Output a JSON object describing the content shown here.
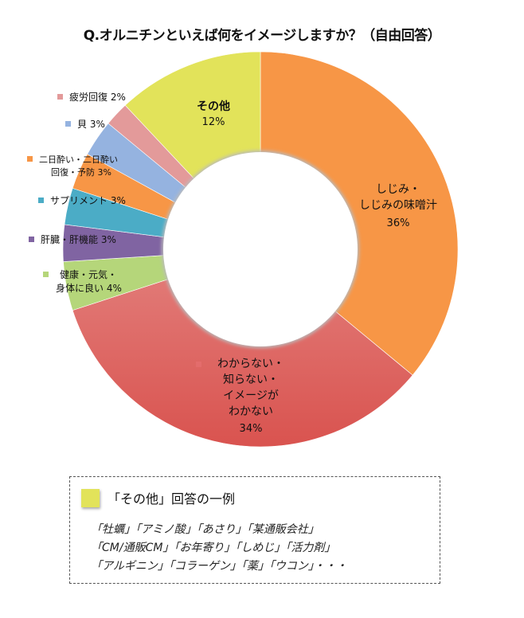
{
  "title": "Q.オルニチンといえば何をイメージしますか？（自由回答）",
  "chart_data": {
    "type": "pie",
    "subtype": "donut",
    "title": "Q.オルニチンといえば何をイメージしますか？（自由回答）",
    "start_angle_deg": 0,
    "direction": "clockwise",
    "categories": [
      "しじみ・しじみの味噌汁",
      "わからない・知らない・イメージがわからない",
      "健康・元気・身体に良い",
      "肝臓・肝機能",
      "サプリメント",
      "二日酔い・二日酔い回復・予防",
      "貝",
      "疲労回復",
      "その他"
    ],
    "values": [
      36,
      34,
      4,
      3,
      3,
      3,
      3,
      2,
      12
    ],
    "unit": "%",
    "colors": [
      "#f79646",
      "#d9534f",
      "#b5d67a",
      "#8064a2",
      "#4bacc6",
      "#f79646",
      "#95b3e0",
      "#e39a9a",
      "#e2e35a"
    ],
    "legend_position": "none (data labels)"
  },
  "labels": {
    "shijimi": {
      "line1": "しじみ・",
      "line2": "しじみの味噌汁",
      "pct": "36%"
    },
    "wakaranai": {
      "line1": "わからない・",
      "line2": "知らない・",
      "line3": "イメージが",
      "line4": "わかない",
      "pct": "34%"
    },
    "kenkou": {
      "line1": "健康・元気・",
      "line2": "身体に良い 4%"
    },
    "kanzou": {
      "text": "肝臓・肝機能 3%"
    },
    "supplement": {
      "text": "サプリメント 3%"
    },
    "futsukayoi": {
      "line1": "二日酔い・二日酔い",
      "line2": "回復・予防 3%"
    },
    "kai": {
      "text": "貝 3%"
    },
    "hirou": {
      "text": "疲労回復 2%"
    },
    "sonota": {
      "line1": "その他",
      "pct": "12%"
    }
  },
  "legend": {
    "title": "「その他」回答の一例",
    "swatch_color": "#e2e35a",
    "lines": [
      "「牡蠣」「アミノ酸」「あさり」「某通販会社」",
      "「CM/通販CM」「お年寄り」「しめじ」「活力剤」",
      "「アルギニン」「コラーゲン」「薬」「ウコン」・・・"
    ]
  }
}
